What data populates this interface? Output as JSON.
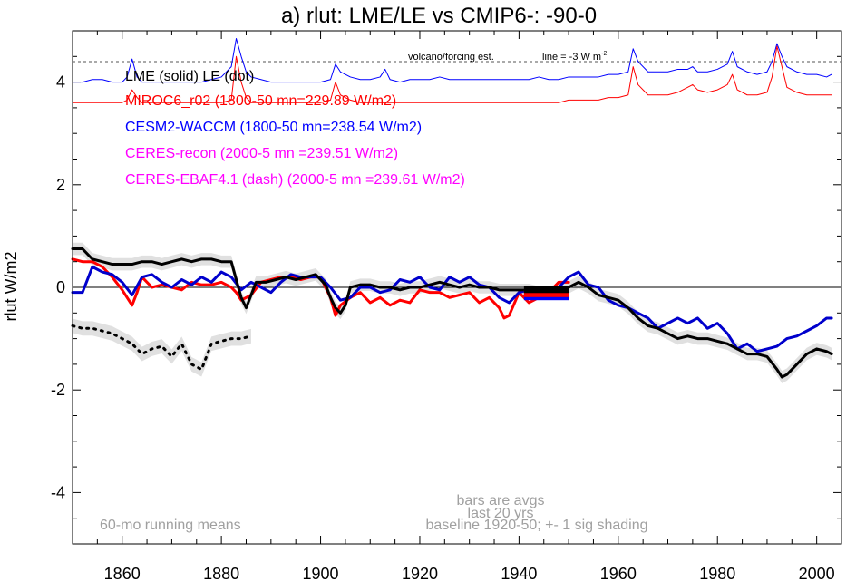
{
  "chart_data": {
    "type": "line",
    "title": "a) rlut: LME/LE vs CMIP6-: -90-0",
    "ylabel": "rlut W/m2",
    "xlabel": "",
    "xlim": [
      1850,
      2005
    ],
    "ylim": [
      -5,
      5
    ],
    "x_ticks": [
      1860,
      1880,
      1900,
      1920,
      1940,
      1960,
      1980,
      2000
    ],
    "y_ticks": [
      -4,
      -2,
      0,
      2,
      4
    ],
    "x_ticks_fmt": [
      "1860",
      "1880",
      "1900",
      "1920",
      "1940",
      "1960",
      "1980",
      "2000"
    ],
    "y_ticks_fmt": [
      "-4",
      "-2",
      "0",
      "2",
      "4"
    ],
    "grid": false,
    "zero_line": true,
    "legend": [
      {
        "text": "LME (solid)   LE (dot)",
        "color": "#000000"
      },
      {
        "text": "MIROC6_r02 (1800-50 mn=229.89 W/m2)",
        "color": "#ff0000"
      },
      {
        "text": "CESM2-WACCM (1800-50 mn=238.54 W/m2)",
        "color": "#0000ff"
      },
      {
        "text": "CERES-recon (2000-5 mn =239.51 W/m2)",
        "color": "#ff00ff"
      },
      {
        "text": "CERES-EBAF4.1 (dash) (2000-5 mn =239.61 W/m2)",
        "color": "#ff00ff"
      }
    ],
    "annotations": {
      "volcano": "volcano/forcing est.",
      "line_note": "line = -3 W m",
      "line_note_sup": "-2",
      "bars1": "bars are avgs",
      "bars2": "last 20 yrs",
      "running": "60-mo running means",
      "baseline": "baseline 1920-50; +- 1 sig shading"
    },
    "dashed_ref_y": 4.4,
    "series": [
      {
        "name": "LME",
        "color": "#000000",
        "style": "solid",
        "width": 3,
        "x": [
          1850,
          1852,
          1854,
          1856,
          1858,
          1860,
          1862,
          1864,
          1866,
          1868,
          1870,
          1872,
          1874,
          1876,
          1878,
          1880,
          1882,
          1884,
          1885,
          1887,
          1889,
          1891,
          1893,
          1895,
          1897,
          1899,
          1901,
          1902,
          1903,
          1904,
          1905,
          1906,
          1908,
          1910,
          1912,
          1914,
          1916,
          1918,
          1920,
          1922,
          1924,
          1926,
          1928,
          1930,
          1932,
          1934,
          1936,
          1938,
          1940,
          1942,
          1944,
          1946,
          1948,
          1950,
          1952,
          1954,
          1956,
          1958,
          1960,
          1962,
          1964,
          1966,
          1968,
          1970,
          1972,
          1974,
          1976,
          1978,
          1980,
          1982,
          1984,
          1986,
          1988,
          1990,
          1992,
          1993,
          1994,
          1996,
          1998,
          2000,
          2002,
          2003
        ],
        "y": [
          0.75,
          0.75,
          0.55,
          0.5,
          0.45,
          0.45,
          0.45,
          0.5,
          0.5,
          0.45,
          0.5,
          0.55,
          0.5,
          0.55,
          0.55,
          0.5,
          0.5,
          -0.2,
          -0.4,
          0.1,
          0.1,
          0.15,
          0.2,
          0.15,
          0.2,
          0.25,
          0.05,
          -0.2,
          -0.4,
          -0.5,
          -0.35,
          0.0,
          0.05,
          0.05,
          0.0,
          0.0,
          -0.05,
          0.0,
          0.0,
          0.05,
          0.1,
          0.05,
          0.0,
          0.05,
          0.0,
          0.0,
          -0.05,
          -0.05,
          -0.05,
          -0.05,
          -0.1,
          -0.1,
          -0.05,
          0.0,
          0.1,
          0.0,
          -0.15,
          -0.2,
          -0.25,
          -0.4,
          -0.6,
          -0.75,
          -0.8,
          -0.9,
          -1.0,
          -0.95,
          -1.0,
          -1.0,
          -1.05,
          -1.1,
          -1.2,
          -1.3,
          -1.3,
          -1.35,
          -1.6,
          -1.75,
          -1.7,
          -1.5,
          -1.3,
          -1.2,
          -1.25,
          -1.3
        ]
      },
      {
        "name": "MIROC6_r02",
        "color": "#ff0000",
        "style": "solid",
        "width": 3,
        "x": [
          1850,
          1852,
          1854,
          1856,
          1858,
          1860,
          1862,
          1863,
          1864,
          1866,
          1868,
          1870,
          1872,
          1874,
          1876,
          1878,
          1880,
          1882,
          1883,
          1884,
          1886,
          1888,
          1890,
          1892,
          1894,
          1896,
          1898,
          1900,
          1902,
          1903,
          1904,
          1906,
          1908,
          1910,
          1912,
          1914,
          1916,
          1918,
          1920,
          1922,
          1924,
          1926,
          1928,
          1930,
          1932,
          1934,
          1936,
          1937,
          1938,
          1940,
          1942,
          1944,
          1946,
          1948,
          1950
        ],
        "y": [
          0.55,
          0.5,
          0.5,
          0.4,
          0.2,
          -0.05,
          -0.35,
          -0.1,
          0.2,
          0.0,
          0.05,
          0.0,
          -0.05,
          0.1,
          0.05,
          0.05,
          0.1,
          0.0,
          -0.1,
          -0.25,
          -0.15,
          0.1,
          0.15,
          0.2,
          0.2,
          0.15,
          0.2,
          0.2,
          -0.2,
          -0.55,
          -0.35,
          -0.2,
          -0.1,
          -0.3,
          -0.2,
          -0.35,
          -0.25,
          -0.3,
          -0.05,
          -0.1,
          -0.1,
          -0.2,
          -0.15,
          -0.1,
          -0.3,
          -0.2,
          -0.4,
          -0.6,
          -0.55,
          -0.1,
          -0.3,
          -0.2,
          -0.1,
          0.1,
          0.1
        ]
      },
      {
        "name": "CESM2-WACCM",
        "color": "#0000cc",
        "style": "solid",
        "width": 3,
        "x": [
          1850,
          1852,
          1854,
          1856,
          1858,
          1860,
          1862,
          1864,
          1866,
          1868,
          1870,
          1872,
          1874,
          1876,
          1878,
          1880,
          1882,
          1884,
          1886,
          1888,
          1890,
          1892,
          1894,
          1896,
          1898,
          1900,
          1902,
          1904,
          1906,
          1908,
          1910,
          1912,
          1914,
          1916,
          1918,
          1920,
          1922,
          1924,
          1926,
          1928,
          1930,
          1932,
          1934,
          1936,
          1938,
          1940,
          1942,
          1944,
          1946,
          1948,
          1950,
          1952,
          1954,
          1956,
          1958,
          1960,
          1962,
          1964,
          1966,
          1968,
          1970,
          1972,
          1974,
          1976,
          1978,
          1980,
          1982,
          1984,
          1986,
          1988,
          1990,
          1992,
          1994,
          1996,
          1998,
          2000,
          2002,
          2003
        ],
        "y": [
          -0.1,
          -0.1,
          0.4,
          0.3,
          0.25,
          0.1,
          -0.15,
          0.2,
          0.25,
          0.1,
          0.0,
          0.15,
          0.05,
          0.2,
          0.1,
          0.3,
          0.2,
          -0.05,
          0.1,
          0.0,
          -0.1,
          0.1,
          0.25,
          0.2,
          0.2,
          0.2,
          0.0,
          -0.25,
          -0.2,
          0.0,
          0.0,
          -0.1,
          -0.05,
          0.15,
          0.1,
          0.2,
          0.0,
          -0.05,
          0.2,
          0.1,
          0.2,
          0.05,
          0.0,
          -0.2,
          -0.3,
          -0.1,
          -0.05,
          -0.05,
          -0.05,
          0.0,
          0.2,
          0.3,
          0.05,
          0.0,
          -0.25,
          -0.35,
          -0.4,
          -0.5,
          -0.6,
          -0.8,
          -0.7,
          -0.6,
          -0.7,
          -0.6,
          -0.8,
          -0.7,
          -0.9,
          -1.2,
          -1.1,
          -1.25,
          -1.2,
          -1.15,
          -1.0,
          -0.95,
          -0.85,
          -0.75,
          -0.6,
          -0.6
        ]
      },
      {
        "name": "LE",
        "color": "#000000",
        "style": "dot",
        "width": 3,
        "x": [
          1850,
          1852,
          1854,
          1856,
          1858,
          1860,
          1862,
          1864,
          1866,
          1868,
          1870,
          1872,
          1874,
          1876,
          1878,
          1880,
          1882,
          1884,
          1886
        ],
        "y": [
          -0.75,
          -0.8,
          -0.8,
          -0.85,
          -0.9,
          -1.0,
          -1.1,
          -1.3,
          -1.2,
          -1.15,
          -1.35,
          -1.1,
          -1.5,
          -1.6,
          -1.1,
          -1.05,
          -1.0,
          -1.0,
          -0.95
        ]
      },
      {
        "name": "CESM2-WACCM volcano/forcing est.",
        "color": "#0000ff",
        "style": "solid",
        "width": 1,
        "x": [
          1850,
          1852,
          1854,
          1856,
          1858,
          1860,
          1861,
          1862,
          1863,
          1864,
          1866,
          1868,
          1870,
          1872,
          1874,
          1876,
          1878,
          1880,
          1882,
          1883,
          1884,
          1885,
          1886,
          1888,
          1890,
          1892,
          1894,
          1896,
          1898,
          1900,
          1902,
          1903,
          1904,
          1906,
          1908,
          1910,
          1912,
          1913,
          1914,
          1916,
          1918,
          1920,
          1922,
          1924,
          1926,
          1928,
          1930,
          1932,
          1934,
          1936,
          1938,
          1940,
          1942,
          1944,
          1946,
          1948,
          1950,
          1952,
          1954,
          1956,
          1958,
          1960,
          1962,
          1963,
          1964,
          1966,
          1968,
          1970,
          1972,
          1974,
          1975,
          1976,
          1978,
          1980,
          1982,
          1983,
          1984,
          1986,
          1988,
          1990,
          1991,
          1992,
          1993,
          1994,
          1996,
          1998,
          2000,
          2002,
          2003
        ],
        "y": [
          4.0,
          4.0,
          4.05,
          4.05,
          4.0,
          4.0,
          4.1,
          4.45,
          4.1,
          4.0,
          4.0,
          4.0,
          4.0,
          4.0,
          4.0,
          4.0,
          4.05,
          4.1,
          4.3,
          4.85,
          4.5,
          4.2,
          4.1,
          4.05,
          4.0,
          4.0,
          4.0,
          4.0,
          4.0,
          4.0,
          4.05,
          4.35,
          4.2,
          4.1,
          4.05,
          4.05,
          4.1,
          4.25,
          4.05,
          4.0,
          4.05,
          4.05,
          4.05,
          4.1,
          4.05,
          4.05,
          4.05,
          4.05,
          4.05,
          4.05,
          4.05,
          4.05,
          4.05,
          4.1,
          4.05,
          4.05,
          4.1,
          4.1,
          4.1,
          4.1,
          4.15,
          4.15,
          4.2,
          4.65,
          4.4,
          4.2,
          4.2,
          4.2,
          4.25,
          4.25,
          4.3,
          4.2,
          4.2,
          4.25,
          4.35,
          4.6,
          4.3,
          4.2,
          4.15,
          4.2,
          4.4,
          4.75,
          4.5,
          4.3,
          4.2,
          4.15,
          4.15,
          4.1,
          4.15
        ]
      },
      {
        "name": "MIROC6 volcano/forcing est.",
        "color": "#ff0000",
        "style": "solid",
        "width": 1,
        "x": [
          1850,
          1852,
          1854,
          1856,
          1858,
          1860,
          1861,
          1862,
          1863,
          1864,
          1866,
          1868,
          1870,
          1872,
          1874,
          1876,
          1878,
          1880,
          1882,
          1883,
          1884,
          1885,
          1886,
          1888,
          1890,
          1892,
          1894,
          1896,
          1898,
          1900,
          1902,
          1903,
          1904,
          1906,
          1908,
          1910,
          1912,
          1914,
          1916,
          1918,
          1920,
          1922,
          1924,
          1926,
          1928,
          1930,
          1932,
          1934,
          1936,
          1938,
          1940,
          1942,
          1944,
          1946,
          1948,
          1950,
          1952,
          1954,
          1956,
          1958,
          1960,
          1962,
          1963,
          1964,
          1966,
          1968,
          1970,
          1972,
          1974,
          1975,
          1976,
          1978,
          1980,
          1982,
          1983,
          1984,
          1986,
          1988,
          1990,
          1991,
          1992,
          1993,
          1994,
          1996,
          1998,
          2000,
          2002,
          2003
        ],
        "y": [
          3.6,
          3.6,
          3.6,
          3.6,
          3.6,
          3.6,
          3.65,
          3.85,
          3.7,
          3.6,
          3.6,
          3.6,
          3.6,
          3.6,
          3.6,
          3.6,
          3.6,
          3.6,
          3.65,
          4.5,
          4.0,
          3.7,
          3.6,
          3.6,
          3.6,
          3.6,
          3.6,
          3.6,
          3.6,
          3.6,
          3.65,
          4.0,
          3.75,
          3.65,
          3.6,
          3.6,
          3.6,
          3.6,
          3.6,
          3.6,
          3.6,
          3.6,
          3.6,
          3.6,
          3.6,
          3.6,
          3.6,
          3.6,
          3.6,
          3.6,
          3.6,
          3.6,
          3.6,
          3.6,
          3.6,
          3.65,
          3.65,
          3.65,
          3.65,
          3.7,
          3.7,
          3.75,
          4.3,
          3.95,
          3.75,
          3.75,
          3.75,
          3.8,
          3.9,
          3.95,
          3.85,
          3.8,
          3.85,
          3.95,
          4.15,
          3.85,
          3.75,
          3.75,
          3.8,
          4.1,
          4.7,
          4.3,
          3.9,
          3.8,
          3.75,
          3.75,
          3.75,
          3.75
        ]
      }
    ],
    "bars": [
      {
        "name": "CESM2-WACCM last 20 yrs",
        "color": "#0000ff",
        "x_range": [
          1941,
          1950
        ],
        "y": -0.18
      },
      {
        "name": "MIROC6_r02 last 20 yrs",
        "color": "#ff0000",
        "x_range": [
          1941,
          1950
        ],
        "y": -0.12
      },
      {
        "name": "LME last 20 yrs",
        "color": "#000000",
        "x_range": [
          1941,
          1950
        ],
        "y": -0.04
      }
    ]
  }
}
